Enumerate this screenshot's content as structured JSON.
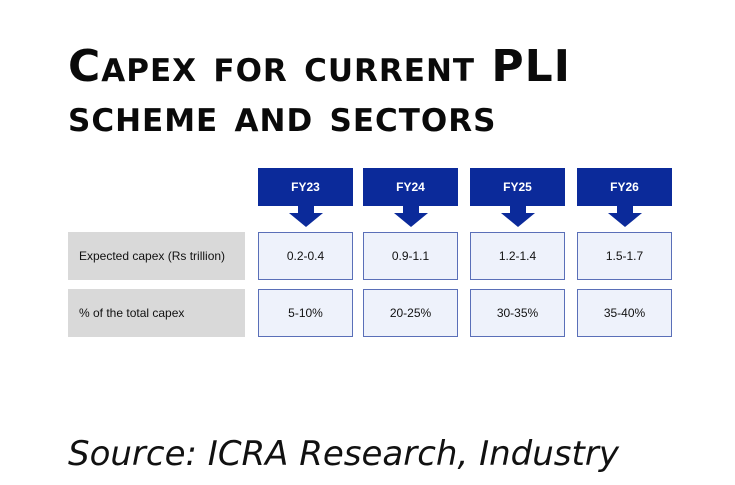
{
  "title": {
    "line1": "Capex for current PLI",
    "line2": "scheme and sectors"
  },
  "source": "Source: ICRA Research, Industry",
  "colors": {
    "header_fill": "#0b2a9a",
    "cell_fill": "#eef2fb",
    "cell_border": "#5a6fb8",
    "row_label_fill": "#d9d9d9"
  },
  "chart_data": {
    "type": "table",
    "columns": [
      "FY23",
      "FY24",
      "FY25",
      "FY26"
    ],
    "rows": [
      {
        "label": "Expected capex (Rs trillion)",
        "values": [
          "0.2-0.4",
          "0.9-1.1",
          "1.2-1.4",
          "1.5-1.7"
        ]
      },
      {
        "label": "% of the total capex",
        "values": [
          "5-10%",
          "20-25%",
          "30-35%",
          "35-40%"
        ]
      }
    ]
  }
}
